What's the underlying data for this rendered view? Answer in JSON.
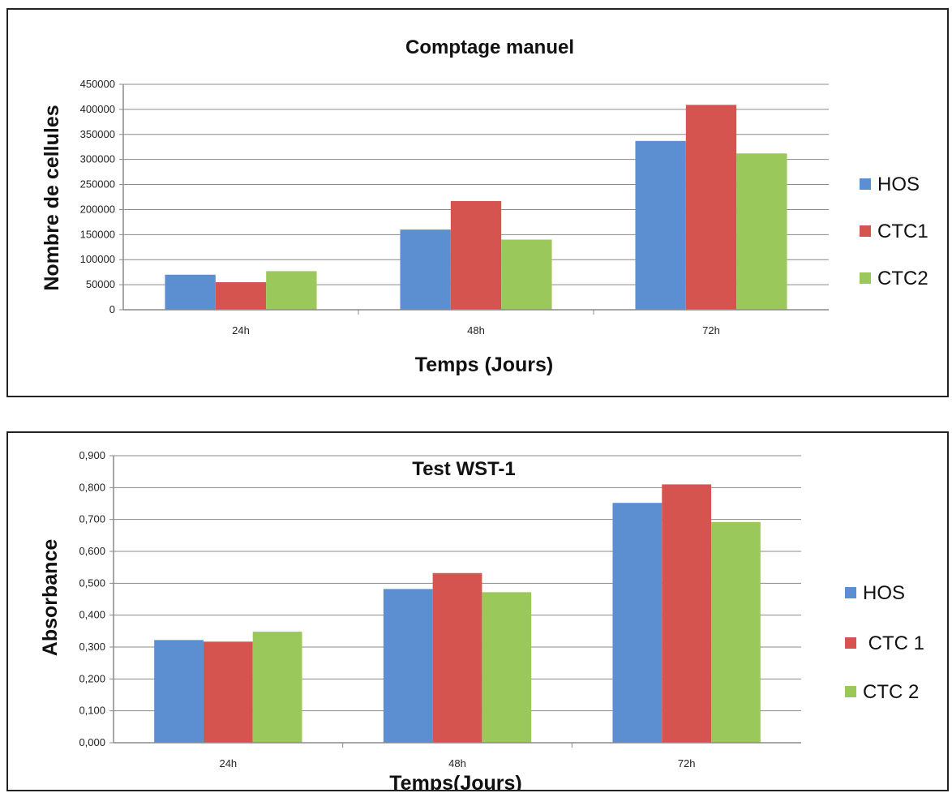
{
  "charts": [
    {
      "title": "Comptage manuel",
      "xlabel": "Temps (Jours)",
      "ylabel": "Nombre de cellules",
      "legend": [
        "HOS",
        "CTC1",
        "CTC2"
      ]
    },
    {
      "title": "Test WST-1",
      "xlabel": "Temps(Jours)",
      "ylabel": "Absorbance",
      "legend": [
        "HOS",
        " CTC 1",
        "CTC 2"
      ]
    }
  ],
  "colors": {
    "HOS": "#5b8fd2",
    "CTC1": "#d65450",
    "CTC2": "#9bc85a",
    "grid": "#8a8a8a",
    "axis": "#8a8a8a"
  },
  "chart_data": [
    {
      "type": "bar",
      "title": "Comptage manuel",
      "xlabel": "Temps (Jours)",
      "ylabel": "Nombre de cellules",
      "categories": [
        "24h",
        "48h",
        "72h"
      ],
      "yticks": [
        "0",
        "50000",
        "100000",
        "150000",
        "200000",
        "250000",
        "300000",
        "350000",
        "400000",
        "450000"
      ],
      "ylim": [
        0,
        450000
      ],
      "grid": true,
      "legend_position": "right",
      "series": [
        {
          "name": "HOS",
          "values": [
            70000,
            160000,
            337000
          ]
        },
        {
          "name": "CTC1",
          "values": [
            55000,
            217000,
            409000
          ]
        },
        {
          "name": "CTC2",
          "values": [
            77000,
            140000,
            312000
          ]
        }
      ]
    },
    {
      "type": "bar",
      "title": "Test WST-1",
      "xlabel": "Temps(Jours)",
      "ylabel": "Absorbance",
      "categories": [
        "24h",
        "48h",
        "72h"
      ],
      "yticks": [
        "0,000",
        "0,100",
        "0,200",
        "0,300",
        "0,400",
        "0,500",
        "0,600",
        "0,700",
        "0,800",
        "0,900"
      ],
      "ylim": [
        0,
        0.9
      ],
      "grid": true,
      "legend_position": "right",
      "series": [
        {
          "name": "HOS",
          "values": [
            0.322,
            0.482,
            0.752
          ]
        },
        {
          "name": "CTC 1",
          "values": [
            0.317,
            0.532,
            0.81
          ]
        },
        {
          "name": "CTC 2",
          "values": [
            0.348,
            0.472,
            0.692
          ]
        }
      ]
    }
  ]
}
